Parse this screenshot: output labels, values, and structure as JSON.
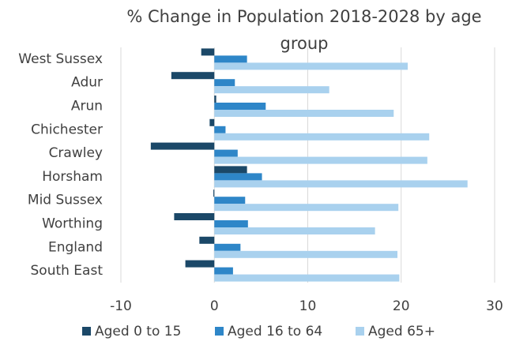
{
  "chart_data": {
    "type": "barh",
    "title": "% Change in Population 2018-2028 by age group",
    "categories": [
      "West Sussex",
      "Adur",
      "Arun",
      "Chichester",
      "Crawley",
      "Horsham",
      "Mid Sussex",
      "Worthing",
      "England",
      "South East"
    ],
    "series": [
      {
        "name": "Aged 0 to 15",
        "color": "#1b4868",
        "values": [
          -1.4,
          -4.6,
          0.2,
          -0.5,
          -6.8,
          3.5,
          -0.1,
          -4.3,
          -1.6,
          -3.1
        ]
      },
      {
        "name": "Aged 16 to 64",
        "color": "#2e86c8",
        "values": [
          3.5,
          2.2,
          5.5,
          1.2,
          2.5,
          5.1,
          3.3,
          3.6,
          2.8,
          2.0
        ]
      },
      {
        "name": "Aged 65+",
        "color": "#a9d1ee",
        "values": [
          20.7,
          12.3,
          19.2,
          23.0,
          22.8,
          27.1,
          19.7,
          17.2,
          19.6,
          19.8
        ]
      }
    ],
    "xlim": [
      -10,
      30
    ],
    "xticks": [
      -10,
      0,
      10,
      20,
      30
    ],
    "grid": true,
    "legend": "bottom"
  }
}
